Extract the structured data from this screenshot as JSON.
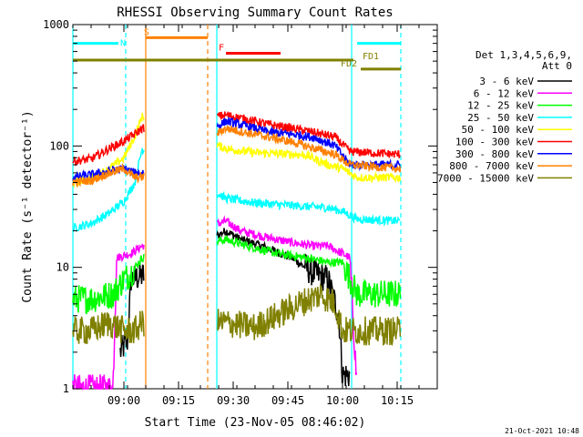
{
  "chart_data": {
    "type": "line",
    "title": "RHESSI Observing Summary Count Rates",
    "xlabel": "Start Time (23-Nov-05 08:46:02)",
    "ylabel": "Count Rate (s⁻¹ detector⁻¹)",
    "yscale": "log",
    "ylim": [
      1,
      1000
    ],
    "y_ticks": [
      1,
      10,
      100,
      1000
    ],
    "xlim_minutes": [
      0,
      100
    ],
    "x_ticks": [
      {
        "label": "09:00",
        "minute": 14
      },
      {
        "label": "09:15",
        "minute": 29
      },
      {
        "label": "09:30",
        "minute": 44
      },
      {
        "label": "09:45",
        "minute": 59
      },
      {
        "label": "10:00",
        "minute": 74
      },
      {
        "label": "10:15",
        "minute": 89
      }
    ],
    "legend": {
      "header": [
        "Det 1,3,4,5,6,9,",
        "Att 0"
      ],
      "placement": "right"
    },
    "series": [
      {
        "name": "3 - 6 keV",
        "color": "#000000",
        "points": [
          [
            13,
            2
          ],
          [
            15,
            2.5
          ],
          [
            16,
            8
          ],
          [
            19,
            8.5
          ],
          [
            42,
            20
          ],
          [
            46,
            17
          ],
          [
            52,
            15
          ],
          [
            60,
            12
          ],
          [
            66,
            9
          ],
          [
            70,
            8
          ],
          [
            73,
            4
          ],
          [
            74,
            1.3
          ],
          [
            76,
            1.3
          ]
        ]
      },
      {
        "name": "6 - 12 keV",
        "color": "#ff00ff",
        "points": [
          [
            0,
            1
          ],
          [
            11,
            1
          ],
          [
            12,
            12
          ],
          [
            16,
            13
          ],
          [
            19,
            15
          ],
          [
            42,
            24
          ],
          [
            46,
            20
          ],
          [
            52,
            18
          ],
          [
            60,
            16
          ],
          [
            66,
            15
          ],
          [
            70,
            15
          ],
          [
            74,
            13
          ],
          [
            76,
            12
          ],
          [
            78,
            1
          ]
        ]
      },
      {
        "name": "12 - 25 keV",
        "color": "#00ff00",
        "points": [
          [
            0,
            5.5
          ],
          [
            5,
            5.5
          ],
          [
            11,
            6
          ],
          [
            14,
            8
          ],
          [
            16,
            9
          ],
          [
            19,
            12
          ],
          [
            42,
            17
          ],
          [
            48,
            15
          ],
          [
            56,
            13
          ],
          [
            64,
            12
          ],
          [
            70,
            11
          ],
          [
            74,
            11
          ],
          [
            78,
            6
          ],
          [
            90,
            6
          ]
        ]
      },
      {
        "name": "25 - 50 keV",
        "color": "#00ffff",
        "points": [
          [
            0,
            21
          ],
          [
            5,
            23
          ],
          [
            10,
            28
          ],
          [
            14,
            35
          ],
          [
            17,
            50
          ],
          [
            19,
            95
          ],
          [
            42,
            37
          ],
          [
            50,
            34
          ],
          [
            56,
            33
          ],
          [
            62,
            32
          ],
          [
            70,
            31
          ],
          [
            74,
            29
          ],
          [
            78,
            25
          ],
          [
            90,
            24
          ]
        ]
      },
      {
        "name": "50 - 100 keV",
        "color": "#ffff00",
        "points": [
          [
            0,
            50
          ],
          [
            5,
            53
          ],
          [
            10,
            65
          ],
          [
            14,
            80
          ],
          [
            17,
            120
          ],
          [
            19,
            175
          ],
          [
            42,
            95
          ],
          [
            50,
            88
          ],
          [
            58,
            86
          ],
          [
            64,
            84
          ],
          [
            70,
            70
          ],
          [
            74,
            65
          ],
          [
            78,
            55
          ],
          [
            90,
            55
          ]
        ]
      },
      {
        "name": "100 - 300 keV",
        "color": "#ff0000",
        "points": [
          [
            0,
            75
          ],
          [
            5,
            78
          ],
          [
            10,
            95
          ],
          [
            14,
            110
          ],
          [
            17,
            125
          ],
          [
            19,
            140
          ],
          [
            42,
            180
          ],
          [
            48,
            165
          ],
          [
            54,
            150
          ],
          [
            60,
            140
          ],
          [
            66,
            130
          ],
          [
            72,
            118
          ],
          [
            76,
            90
          ],
          [
            90,
            85
          ]
        ]
      },
      {
        "name": "300 - 800 keV",
        "color": "#0000ff",
        "points": [
          [
            0,
            55
          ],
          [
            5,
            58
          ],
          [
            10,
            62
          ],
          [
            14,
            65
          ],
          [
            17,
            60
          ],
          [
            19,
            60
          ],
          [
            42,
            160
          ],
          [
            48,
            145
          ],
          [
            54,
            130
          ],
          [
            60,
            125
          ],
          [
            66,
            118
          ],
          [
            72,
            100
          ],
          [
            76,
            70
          ],
          [
            90,
            70
          ]
        ]
      },
      {
        "name": "800 - 7000 keV",
        "color": "#ff8000",
        "points": [
          [
            0,
            50
          ],
          [
            5,
            52
          ],
          [
            10,
            60
          ],
          [
            14,
            65
          ],
          [
            17,
            55
          ],
          [
            19,
            55
          ],
          [
            42,
            140
          ],
          [
            48,
            128
          ],
          [
            54,
            118
          ],
          [
            60,
            108
          ],
          [
            66,
            96
          ],
          [
            72,
            85
          ],
          [
            76,
            70
          ],
          [
            90,
            65
          ]
        ]
      },
      {
        "name": "7000 - 15000 keV",
        "color": "#808000",
        "points": [
          [
            0,
            3
          ],
          [
            5,
            3
          ],
          [
            10,
            3.5
          ],
          [
            14,
            3
          ],
          [
            17,
            3
          ],
          [
            19,
            3.5
          ],
          [
            42,
            3.5
          ],
          [
            50,
            3.2
          ],
          [
            56,
            4
          ],
          [
            62,
            5
          ],
          [
            68,
            6
          ],
          [
            72,
            5
          ],
          [
            74,
            3
          ],
          [
            90,
            3
          ]
        ]
      }
    ],
    "flag_bars": [
      {
        "label": "N",
        "color": "#00ffff",
        "segments_minutes": [
          [
            0,
            12.5
          ],
          [
            78,
            90
          ]
        ],
        "level": 700
      },
      {
        "label": "S",
        "color": "#ff8000",
        "segments_minutes": [
          [
            20,
            37
          ]
        ],
        "level": 780
      },
      {
        "label": "F",
        "color": "#ff0000",
        "segments_minutes": [
          [
            42,
            57
          ]
        ],
        "level": 580
      },
      {
        "label": "FD1",
        "color": "#808000",
        "segments_minutes": [
          [
            0,
            77
          ]
        ],
        "level": 510
      },
      {
        "label": "FD2",
        "color": "#808000",
        "segments_minutes": [
          [
            79,
            90
          ]
        ],
        "level": 430
      }
    ],
    "vertical_lines": [
      {
        "minute": 0,
        "color": "#00ffff",
        "style": "solid"
      },
      {
        "minute": 14.5,
        "color": "#00ffff",
        "style": "dashed"
      },
      {
        "minute": 20,
        "color": "#ff8000",
        "style": "solid"
      },
      {
        "minute": 37,
        "color": "#ff8000",
        "style": "dashed"
      },
      {
        "minute": 39.5,
        "color": "#00ffff",
        "style": "solid"
      },
      {
        "minute": 76.5,
        "color": "#00ffff",
        "style": "solid"
      },
      {
        "minute": 90,
        "color": "#00ffff",
        "style": "dashed"
      }
    ],
    "gaps_minutes": [
      [
        19.5,
        39.5
      ]
    ]
  },
  "footer": {
    "timestamp": "21-Oct-2021 10:48"
  }
}
